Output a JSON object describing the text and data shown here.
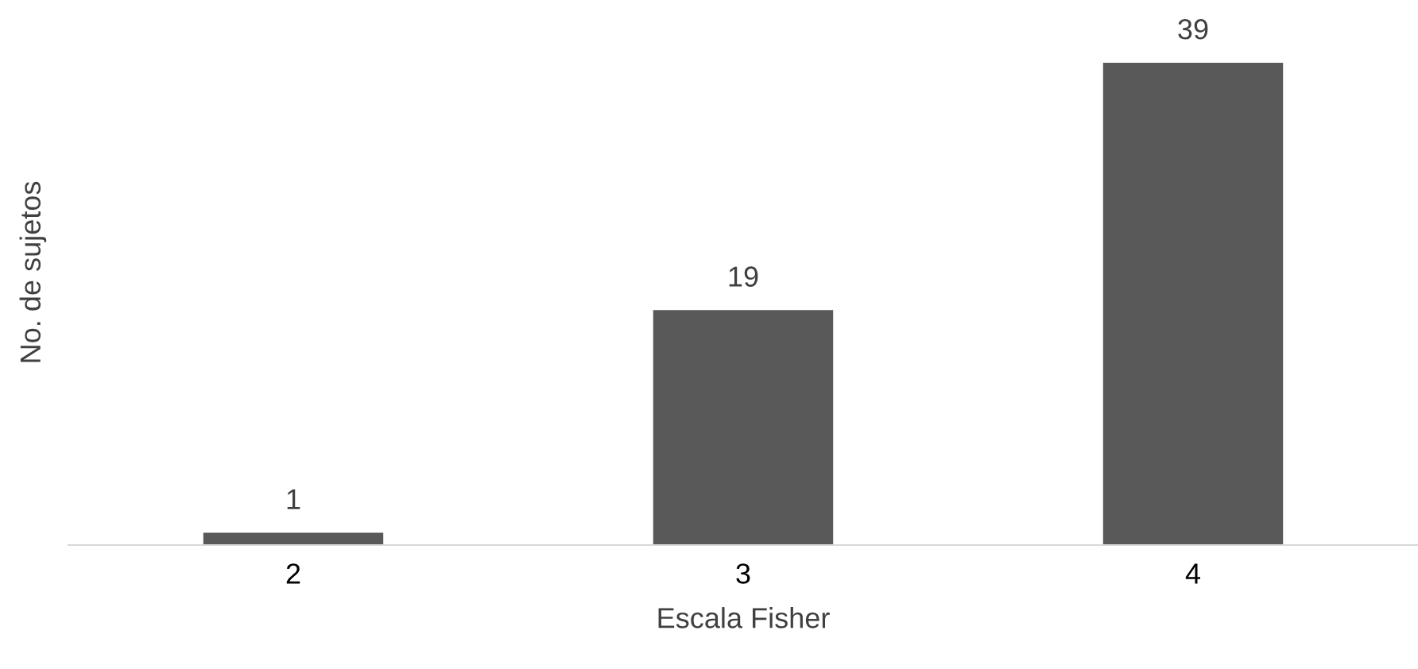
{
  "chart_data": {
    "type": "bar",
    "xlabel": "Escala Fisher",
    "ylabel": "No. de sujetos",
    "categories": [
      "2",
      "3",
      "4"
    ],
    "values": [
      1,
      19,
      39
    ],
    "color": "#595959",
    "data_labels": true,
    "grid": false,
    "legend": false
  }
}
